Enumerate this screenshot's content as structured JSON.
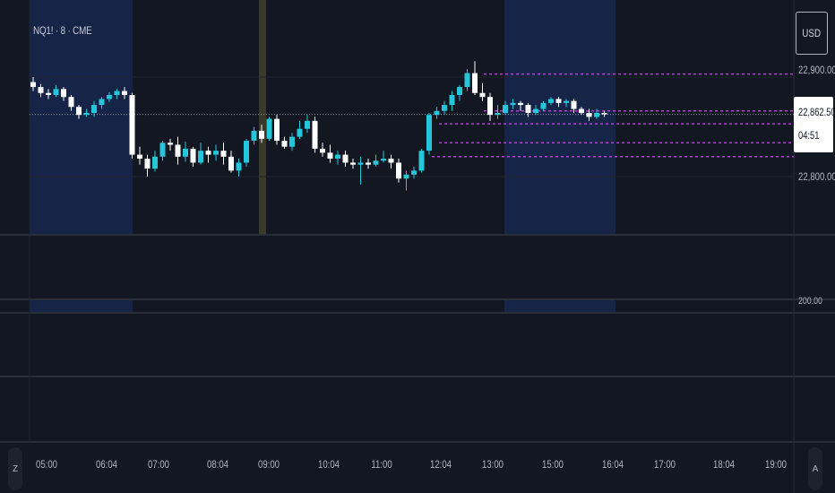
{
  "ticker": {
    "label": "NQ1! · 8 · CME"
  },
  "currency": {
    "label": "USD"
  },
  "price_axis": {
    "ticks": [
      "22,900.00",
      "22,800.00",
      "200.00"
    ],
    "last_price": "22,862.50",
    "countdown": "04:51"
  },
  "time_axis": {
    "ticks": [
      "05:00",
      "06:04",
      "07:00",
      "08:04",
      "09:00",
      "10:04",
      "11:00",
      "12:04",
      "13:00",
      "15:00",
      "16:04",
      "17:00",
      "18:04",
      "19:00"
    ]
  },
  "buttons": {
    "auto_scale": "A",
    "zoom": "Z"
  },
  "colors": {
    "background": "#131722",
    "up": "#26c6da",
    "down": "#ffffff",
    "session_highlight": "#162447",
    "level_line": "#b53dd6",
    "last_price_line": "#9598a1"
  },
  "chart_data": {
    "type": "candlestick",
    "symbol": "NQ1!",
    "interval": "8",
    "exchange": "CME",
    "y_range": [
      22750,
      22935
    ],
    "last_price": 22862.5,
    "level_lines": [
      22903,
      22866,
      22853,
      22834,
      22820
    ],
    "candles": [
      {
        "o": 22895,
        "c": 22890,
        "h": 22900,
        "l": 22886
      },
      {
        "o": 22890,
        "c": 22884,
        "h": 22893,
        "l": 22880
      },
      {
        "o": 22884,
        "c": 22882,
        "h": 22888,
        "l": 22878
      },
      {
        "o": 22882,
        "c": 22888,
        "h": 22892,
        "l": 22880
      },
      {
        "o": 22888,
        "c": 22880,
        "h": 22890,
        "l": 22876
      },
      {
        "o": 22880,
        "c": 22870,
        "h": 22882,
        "l": 22866
      },
      {
        "o": 22870,
        "c": 22862,
        "h": 22872,
        "l": 22858
      },
      {
        "o": 22862,
        "c": 22864,
        "h": 22868,
        "l": 22860
      },
      {
        "o": 22864,
        "c": 22872,
        "h": 22876,
        "l": 22860
      },
      {
        "o": 22872,
        "c": 22878,
        "h": 22880,
        "l": 22868
      },
      {
        "o": 22878,
        "c": 22882,
        "h": 22885,
        "l": 22875
      },
      {
        "o": 22882,
        "c": 22886,
        "h": 22888,
        "l": 22878
      },
      {
        "o": 22886,
        "c": 22882,
        "h": 22890,
        "l": 22878
      },
      {
        "o": 22882,
        "c": 22822,
        "h": 22884,
        "l": 22818
      },
      {
        "o": 22822,
        "c": 22818,
        "h": 22830,
        "l": 22812
      },
      {
        "o": 22818,
        "c": 22808,
        "h": 22822,
        "l": 22800
      },
      {
        "o": 22808,
        "c": 22820,
        "h": 22826,
        "l": 22805
      },
      {
        "o": 22820,
        "c": 22834,
        "h": 22836,
        "l": 22816
      },
      {
        "o": 22834,
        "c": 22832,
        "h": 22838,
        "l": 22826
      },
      {
        "o": 22832,
        "c": 22820,
        "h": 22840,
        "l": 22812
      },
      {
        "o": 22820,
        "c": 22828,
        "h": 22835,
        "l": 22815
      },
      {
        "o": 22828,
        "c": 22814,
        "h": 22830,
        "l": 22810
      },
      {
        "o": 22814,
        "c": 22826,
        "h": 22834,
        "l": 22812
      },
      {
        "o": 22826,
        "c": 22822,
        "h": 22830,
        "l": 22814
      },
      {
        "o": 22822,
        "c": 22826,
        "h": 22832,
        "l": 22816
      },
      {
        "o": 22826,
        "c": 22820,
        "h": 22834,
        "l": 22812
      },
      {
        "o": 22820,
        "c": 22806,
        "h": 22826,
        "l": 22804
      },
      {
        "o": 22806,
        "c": 22814,
        "h": 22818,
        "l": 22800
      },
      {
        "o": 22814,
        "c": 22836,
        "h": 22838,
        "l": 22810
      },
      {
        "o": 22836,
        "c": 22846,
        "h": 22850,
        "l": 22832
      },
      {
        "o": 22846,
        "c": 22838,
        "h": 22852,
        "l": 22834
      },
      {
        "o": 22838,
        "c": 22858,
        "h": 22860,
        "l": 22836
      },
      {
        "o": 22858,
        "c": 22836,
        "h": 22862,
        "l": 22832
      },
      {
        "o": 22836,
        "c": 22830,
        "h": 22840,
        "l": 22828
      },
      {
        "o": 22830,
        "c": 22840,
        "h": 22844,
        "l": 22826
      },
      {
        "o": 22840,
        "c": 22848,
        "h": 22856,
        "l": 22838
      },
      {
        "o": 22848,
        "c": 22856,
        "h": 22862,
        "l": 22844
      },
      {
        "o": 22856,
        "c": 22828,
        "h": 22860,
        "l": 22824
      },
      {
        "o": 22828,
        "c": 22824,
        "h": 22834,
        "l": 22820
      },
      {
        "o": 22824,
        "c": 22818,
        "h": 22832,
        "l": 22814
      },
      {
        "o": 22818,
        "c": 22822,
        "h": 22826,
        "l": 22812
      },
      {
        "o": 22822,
        "c": 22814,
        "h": 22826,
        "l": 22810
      },
      {
        "o": 22814,
        "c": 22812,
        "h": 22818,
        "l": 22808
      },
      {
        "o": 22812,
        "c": 22814,
        "h": 22820,
        "l": 22792
      },
      {
        "o": 22814,
        "c": 22812,
        "h": 22818,
        "l": 22808
      },
      {
        "o": 22812,
        "c": 22816,
        "h": 22822,
        "l": 22810
      },
      {
        "o": 22816,
        "c": 22818,
        "h": 22826,
        "l": 22814
      },
      {
        "o": 22818,
        "c": 22814,
        "h": 22822,
        "l": 22808
      },
      {
        "o": 22814,
        "c": 22798,
        "h": 22818,
        "l": 22794
      },
      {
        "o": 22798,
        "c": 22802,
        "h": 22806,
        "l": 22786
      },
      {
        "o": 22802,
        "c": 22806,
        "h": 22810,
        "l": 22798
      },
      {
        "o": 22806,
        "c": 22826,
        "h": 22828,
        "l": 22804
      },
      {
        "o": 22826,
        "c": 22862,
        "h": 22864,
        "l": 22822
      },
      {
        "o": 22862,
        "c": 22866,
        "h": 22870,
        "l": 22858
      },
      {
        "o": 22866,
        "c": 22872,
        "h": 22876,
        "l": 22862
      },
      {
        "o": 22872,
        "c": 22882,
        "h": 22886,
        "l": 22866
      },
      {
        "o": 22882,
        "c": 22890,
        "h": 22892,
        "l": 22876
      },
      {
        "o": 22890,
        "c": 22904,
        "h": 22908,
        "l": 22886
      },
      {
        "o": 22904,
        "c": 22884,
        "h": 22916,
        "l": 22882
      },
      {
        "o": 22884,
        "c": 22880,
        "h": 22894,
        "l": 22876
      },
      {
        "o": 22880,
        "c": 22862,
        "h": 22884,
        "l": 22856
      },
      {
        "o": 22862,
        "c": 22864,
        "h": 22872,
        "l": 22858
      },
      {
        "o": 22864,
        "c": 22872,
        "h": 22876,
        "l": 22862
      },
      {
        "o": 22872,
        "c": 22874,
        "h": 22878,
        "l": 22868
      },
      {
        "o": 22874,
        "c": 22872,
        "h": 22876,
        "l": 22866
      },
      {
        "o": 22872,
        "c": 22864,
        "h": 22874,
        "l": 22860
      },
      {
        "o": 22864,
        "c": 22868,
        "h": 22872,
        "l": 22862
      },
      {
        "o": 22868,
        "c": 22874,
        "h": 22876,
        "l": 22866
      },
      {
        "o": 22874,
        "c": 22878,
        "h": 22880,
        "l": 22872
      },
      {
        "o": 22878,
        "c": 22874,
        "h": 22880,
        "l": 22870
      },
      {
        "o": 22874,
        "c": 22876,
        "h": 22878,
        "l": 22870
      },
      {
        "o": 22876,
        "c": 22868,
        "h": 22878,
        "l": 22864
      },
      {
        "o": 22868,
        "c": 22864,
        "h": 22870,
        "l": 22862
      },
      {
        "o": 22864,
        "c": 22860,
        "h": 22868,
        "l": 22856
      },
      {
        "o": 22860,
        "c": 22864,
        "h": 22868,
        "l": 22858
      },
      {
        "o": 22864,
        "c": 22862.5,
        "h": 22866,
        "l": 22860
      }
    ]
  }
}
